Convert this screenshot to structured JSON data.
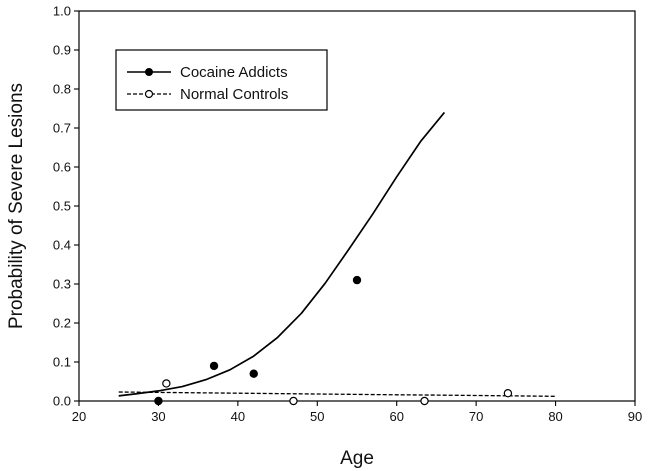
{
  "chart_data": {
    "type": "scatter",
    "xlabel": "Age",
    "ylabel": "Probability of Severe Lesions",
    "xlim": [
      20,
      90
    ],
    "ylim": [
      0.0,
      1.0
    ],
    "xticks": [
      "20",
      "30",
      "40",
      "50",
      "60",
      "70",
      "80",
      "90"
    ],
    "yticks": [
      "0.0",
      "0.1",
      "0.2",
      "0.3",
      "0.4",
      "0.5",
      "0.6",
      "0.7",
      "0.8",
      "0.9",
      "1.0"
    ],
    "grid": false,
    "legend_position": "top-left",
    "series": [
      {
        "name": "Cocaine Addicts",
        "marker": "filled-circle",
        "line": "solid",
        "color": "#000000",
        "points": [
          {
            "x": 30,
            "y": 0.0
          },
          {
            "x": 37,
            "y": 0.09
          },
          {
            "x": 42,
            "y": 0.07
          },
          {
            "x": 55,
            "y": 0.31
          }
        ],
        "fit": {
          "x": [
            25,
            27,
            30,
            33,
            36,
            39,
            42,
            45,
            48,
            51,
            54,
            57,
            60,
            63,
            66
          ],
          "y": [
            0.013,
            0.018,
            0.026,
            0.037,
            0.055,
            0.08,
            0.115,
            0.163,
            0.225,
            0.302,
            0.39,
            0.48,
            0.575,
            0.665,
            0.74
          ]
        }
      },
      {
        "name": "Normal Controls",
        "marker": "open-circle",
        "line": "dashed",
        "color": "#000000",
        "points": [
          {
            "x": 31,
            "y": 0.045
          },
          {
            "x": 47,
            "y": 0.0
          },
          {
            "x": 63.5,
            "y": 0.0
          },
          {
            "x": 74,
            "y": 0.02
          }
        ],
        "fit": {
          "x": [
            25,
            30,
            35,
            40,
            45,
            50,
            55,
            60,
            65,
            70,
            75,
            80
          ],
          "y": [
            0.023,
            0.022,
            0.021,
            0.02,
            0.019,
            0.018,
            0.017,
            0.016,
            0.015,
            0.014,
            0.013,
            0.012
          ]
        }
      }
    ]
  }
}
